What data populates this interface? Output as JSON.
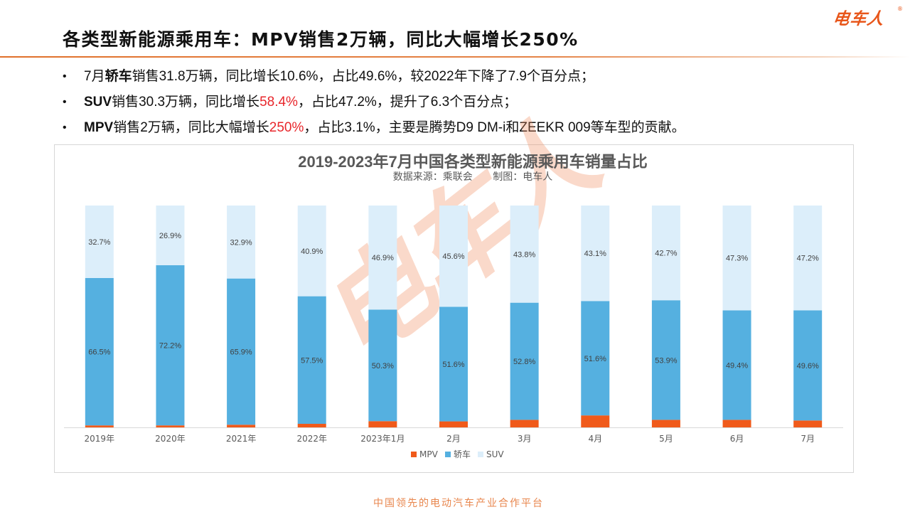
{
  "header": {
    "title": "各类型新能源乘用车：MPV销售2万辆，同比大幅增长250%",
    "logo_text": "电车人",
    "logo_registered": "®"
  },
  "bullets": [
    {
      "parts": [
        {
          "text": "7月",
          "style": "normal"
        },
        {
          "text": "轿车",
          "style": "bold"
        },
        {
          "text": "销售31.8万辆，同比增长10.6%，占比49.6%，较2022年下降了7.9个百分点；",
          "style": "normal"
        }
      ]
    },
    {
      "parts": [
        {
          "text": "SUV",
          "style": "bold"
        },
        {
          "text": "销售30.3万辆，同比增长",
          "style": "normal"
        },
        {
          "text": "58.4%",
          "style": "red"
        },
        {
          "text": "，占比47.2%，提升了6.3个百分点；",
          "style": "normal"
        }
      ]
    },
    {
      "parts": [
        {
          "text": "MPV",
          "style": "bold"
        },
        {
          "text": "销售2万辆，同比大幅增长",
          "style": "normal"
        },
        {
          "text": "250%",
          "style": "red"
        },
        {
          "text": "，占比3.1%，主要是腾势D9 DM-i和ZEEKR 009等车型的贡献。",
          "style": "normal"
        }
      ]
    }
  ],
  "bullet_marker": "•",
  "chart": {
    "watermark": "电车人",
    "subtitle_source": "数据来源：乘联会",
    "subtitle_maker": "制图：电车人"
  },
  "chart_data": {
    "type": "bar",
    "stacked": true,
    "percent_stacked": true,
    "title": "2019-2023年7月中国各类型新能源乘用车销量占比",
    "subtitle": "数据来源：乘联会    制图：电车人",
    "categories": [
      "2019年",
      "2020年",
      "2021年",
      "2022年",
      "2023年1月",
      "2月",
      "3月",
      "4月",
      "5月",
      "6月",
      "7月"
    ],
    "series": [
      {
        "name": "MPV",
        "color": "#f05a1a",
        "values": [
          0.9,
          0.9,
          1.2,
          1.6,
          2.8,
          2.7,
          3.4,
          5.4,
          3.4,
          3.4,
          3.1
        ]
      },
      {
        "name": "轿车",
        "color": "#55b0e0",
        "values": [
          66.5,
          72.2,
          65.9,
          57.5,
          50.3,
          51.6,
          52.8,
          51.6,
          53.9,
          49.4,
          49.6
        ]
      },
      {
        "name": "SUV",
        "color": "#dceefa",
        "values": [
          32.7,
          26.9,
          32.9,
          40.9,
          46.9,
          45.6,
          43.8,
          43.1,
          42.7,
          47.3,
          47.2
        ]
      }
    ],
    "value_suffix": "%",
    "xlabel": "",
    "ylabel": "",
    "ylim": [
      0,
      100
    ],
    "y_axis_visible": false,
    "grid": false,
    "legend_position": "bottom-center"
  },
  "footer": {
    "slogan": "中国领先的电动汽车产业合作平台"
  }
}
